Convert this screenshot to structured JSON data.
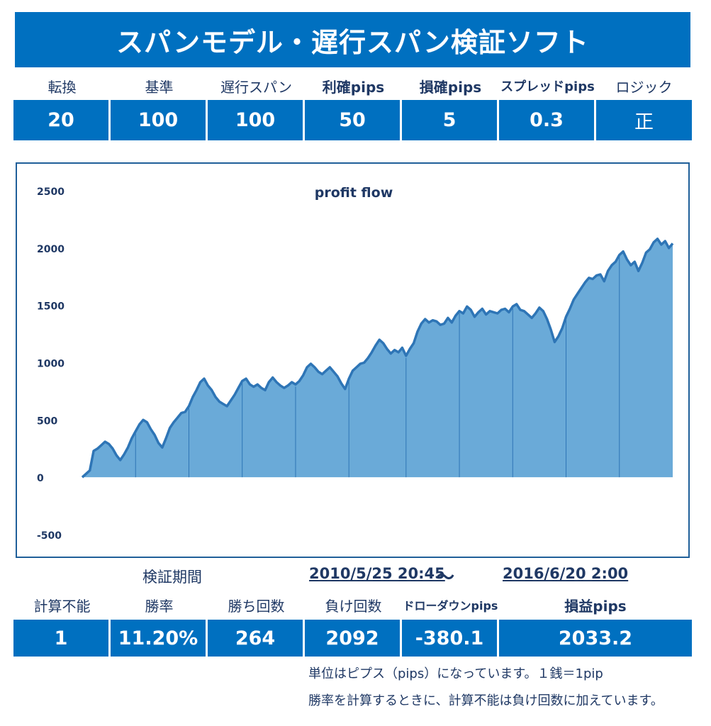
{
  "title": "スパンモデル・遅行スパン検証ソフト",
  "params": {
    "labels": [
      "転換",
      "基準",
      "遅行スパン",
      "利確pips",
      "損確pips",
      "スプレッドpips",
      "ロジック"
    ],
    "values": [
      "20",
      "100",
      "100",
      "50",
      "5",
      "0.3",
      "正"
    ]
  },
  "period": {
    "label": "検証期間",
    "start": "2010/5/25 20:45",
    "separator": "～",
    "end": "2016/6/20 2:00"
  },
  "results": {
    "labels": [
      "計算不能",
      "勝率",
      "勝ち回数",
      "負け回数",
      "ドローダウンpips",
      "損益pips"
    ],
    "values": [
      "1",
      "11.20%",
      "264",
      "2092",
      "-380.1",
      "2033.2"
    ]
  },
  "notes": [
    "単位はピプス（pips）になっています。１銭＝1pip",
    "勝率を計算するときに、計算不能は負け回数に加えています。"
  ],
  "colors": {
    "accent": "#0070c0",
    "line": "#2e75b6",
    "fill": "#6aaad8",
    "text": "#1f3864"
  },
  "chart_data": {
    "type": "area",
    "title": "profit flow",
    "xlabel": "",
    "ylabel": "",
    "ylim": [
      -500,
      2500
    ],
    "yticks": [
      2500,
      2000,
      1500,
      1000,
      500,
      0,
      -500
    ],
    "grid": false,
    "series": [
      {
        "values": [
          0,
          30,
          60,
          230,
          250,
          280,
          310,
          290,
          250,
          190,
          150,
          200,
          260,
          340,
          400,
          460,
          500,
          480,
          420,
          370,
          300,
          260,
          340,
          430,
          480,
          520,
          560,
          570,
          620,
          700,
          760,
          830,
          860,
          800,
          760,
          700,
          660,
          640,
          620,
          670,
          720,
          780,
          840,
          860,
          810,
          790,
          810,
          780,
          760,
          830,
          870,
          830,
          800,
          780,
          800,
          830,
          810,
          840,
          890,
          960,
          990,
          960,
          920,
          900,
          930,
          960,
          920,
          880,
          820,
          770,
          860,
          930,
          960,
          990,
          1000,
          1040,
          1090,
          1150,
          1200,
          1170,
          1120,
          1080,
          1110,
          1090,
          1130,
          1060,
          1120,
          1170,
          1270,
          1340,
          1380,
          1350,
          1370,
          1360,
          1330,
          1340,
          1390,
          1350,
          1410,
          1450,
          1430,
          1490,
          1460,
          1400,
          1440,
          1470,
          1420,
          1450,
          1440,
          1430,
          1460,
          1470,
          1440,
          1490,
          1510,
          1460,
          1450,
          1420,
          1390,
          1430,
          1480,
          1450,
          1380,
          1290,
          1180,
          1230,
          1300,
          1400,
          1470,
          1550,
          1600,
          1650,
          1700,
          1740,
          1730,
          1760,
          1770,
          1710,
          1800,
          1850,
          1880,
          1940,
          1970,
          1900,
          1850,
          1880,
          1800,
          1870,
          1960,
          1990,
          2050,
          2080,
          2030,
          2060,
          2000,
          2040
        ]
      }
    ],
    "x_segment_count": 11
  }
}
